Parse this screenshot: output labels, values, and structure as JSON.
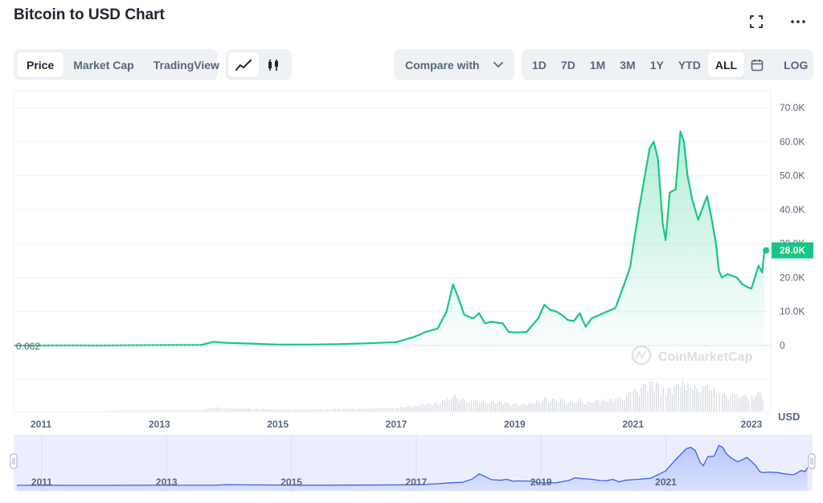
{
  "header": {
    "title": "Bitcoin to USD Chart"
  },
  "icons": {
    "fullscreen": "fullscreen-icon",
    "more": "more-icon"
  },
  "views": {
    "tabs": [
      "Price",
      "Market Cap",
      "TradingView"
    ],
    "active": "Price"
  },
  "chart_types": {
    "line": "line-chart-icon",
    "candle": "candlestick-icon",
    "active": "line"
  },
  "compare": {
    "label": "Compare with"
  },
  "ranges": {
    "items": [
      "1D",
      "7D",
      "1M",
      "3M",
      "1Y",
      "YTD",
      "ALL"
    ],
    "active": "ALL",
    "log_label": "LOG"
  },
  "colors": {
    "line": "#16c784",
    "navigator": "#3861fb",
    "accent": "#3861fb"
  },
  "chart_data": {
    "type": "area",
    "y_ticks": [
      "70.0K",
      "60.0K",
      "50.0K",
      "40.0K",
      "30.0K",
      "20.0K",
      "10.0K",
      "0"
    ],
    "y_unit": "USD",
    "x_ticks": [
      "2011",
      "2013",
      "2015",
      "2017",
      "2019",
      "2021",
      "2023"
    ],
    "navigator_ticks": [
      "2011",
      "2013",
      "2015",
      "2017",
      "2019",
      "2021"
    ],
    "ylim": [
      0,
      70000
    ],
    "start_label": "0.062",
    "current_price_label": "28.0K",
    "watermark": "CoinMarketCap",
    "series": [
      {
        "x": [
          2010.55,
          2011.0,
          2011.5,
          2012.0,
          2013.0,
          2013.7,
          2013.92,
          2014.1,
          2014.5,
          2015.0,
          2015.5,
          2016.0,
          2016.5,
          2017.0,
          2017.3,
          2017.5,
          2017.7,
          2017.85,
          2017.96,
          2018.05,
          2018.15,
          2018.3,
          2018.4,
          2018.5,
          2018.6,
          2018.8,
          2018.9,
          2019.0,
          2019.2,
          2019.4,
          2019.5,
          2019.6,
          2019.7,
          2019.8,
          2019.9,
          2020.0,
          2020.1,
          2020.2,
          2020.3,
          2020.5,
          2020.7,
          2020.85,
          2020.95,
          2021.0,
          2021.1,
          2021.2,
          2021.28,
          2021.35,
          2021.42,
          2021.5,
          2021.55,
          2021.62,
          2021.72,
          2021.8,
          2021.86,
          2021.92,
          2022.0,
          2022.1,
          2022.25,
          2022.32,
          2022.4,
          2022.45,
          2022.5,
          2022.6,
          2022.75,
          2022.85,
          2022.95,
          2023.0,
          2023.12,
          2023.18,
          2023.22
        ],
        "y": [
          0.062,
          5,
          14,
          6,
          130,
          150,
          1100,
          800,
          600,
          250,
          250,
          400,
          650,
          1000,
          2500,
          4000,
          5000,
          10000,
          18000,
          14000,
          9000,
          8000,
          9500,
          6500,
          7000,
          6500,
          4000,
          3800,
          4000,
          8000,
          12000,
          10500,
          10000,
          9000,
          7500,
          7200,
          9500,
          5500,
          8000,
          9500,
          11000,
          18000,
          23000,
          29000,
          40000,
          50000,
          58000,
          60000,
          55000,
          36000,
          31000,
          45000,
          46000,
          63000,
          60000,
          50000,
          43000,
          37000,
          44000,
          38000,
          30000,
          22000,
          20000,
          21000,
          20000,
          18000,
          17000,
          16800,
          23500,
          21500,
          28000
        ]
      }
    ]
  }
}
